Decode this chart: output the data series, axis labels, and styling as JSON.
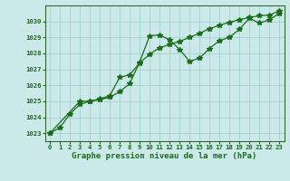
{
  "xlabel": "Graphe pression niveau de la mer (hPa)",
  "xlim": [
    -0.5,
    23.5
  ],
  "ylim": [
    1022.5,
    1031.0
  ],
  "yticks": [
    1023,
    1024,
    1025,
    1026,
    1027,
    1028,
    1029,
    1030
  ],
  "xticks": [
    0,
    1,
    2,
    3,
    4,
    5,
    6,
    7,
    8,
    9,
    10,
    11,
    12,
    13,
    14,
    15,
    16,
    17,
    18,
    19,
    20,
    21,
    22,
    23
  ],
  "background_color": "#cce9e9",
  "grid_color": "#99cccc",
  "line_color": "#1a6b1a",
  "line1_x": [
    0,
    1,
    2,
    3,
    4,
    5,
    6,
    7,
    8,
    9,
    10,
    11,
    12,
    13,
    14,
    15,
    16,
    17,
    18,
    19,
    20,
    21,
    22,
    23
  ],
  "line1_y": [
    1023.0,
    1023.35,
    1024.2,
    1024.8,
    1025.0,
    1025.1,
    1025.25,
    1025.6,
    1026.1,
    1027.45,
    1029.1,
    1029.15,
    1028.85,
    1028.25,
    1027.5,
    1027.7,
    1028.3,
    1028.8,
    1029.0,
    1029.5,
    1030.2,
    1029.9,
    1030.1,
    1030.5
  ],
  "line2_x": [
    0,
    3,
    4,
    5,
    6,
    7,
    8,
    9,
    10,
    11,
    12,
    13,
    14,
    15,
    16,
    17,
    18,
    19,
    20,
    21,
    22,
    23
  ],
  "line2_y": [
    1023.0,
    1025.0,
    1025.0,
    1025.15,
    1025.35,
    1026.5,
    1026.65,
    1027.4,
    1027.95,
    1028.35,
    1028.55,
    1028.75,
    1029.0,
    1029.25,
    1029.55,
    1029.75,
    1029.95,
    1030.1,
    1030.25,
    1030.35,
    1030.4,
    1030.65
  ],
  "marker": "*",
  "marker_size": 4,
  "linewidth": 0.9
}
